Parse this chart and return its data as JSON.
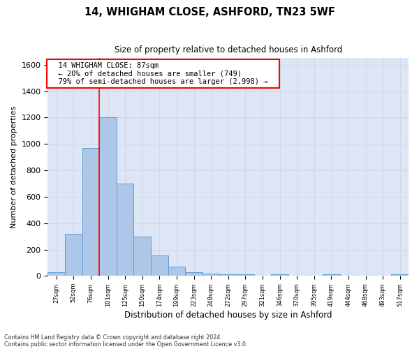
{
  "title": "14, WHIGHAM CLOSE, ASHFORD, TN23 5WF",
  "subtitle": "Size of property relative to detached houses in Ashford",
  "xlabel": "Distribution of detached houses by size in Ashford",
  "ylabel": "Number of detached properties",
  "footer_line1": "Contains HM Land Registry data © Crown copyright and database right 2024.",
  "footer_line2": "Contains public sector information licensed under the Open Government Licence v3.0.",
  "annotation_line1": "14 WHIGHAM CLOSE: 87sqm",
  "annotation_line2": "← 20% of detached houses are smaller (749)",
  "annotation_line3": "79% of semi-detached houses are larger (2,998) →",
  "bar_categories": [
    "27sqm",
    "52sqm",
    "76sqm",
    "101sqm",
    "125sqm",
    "150sqm",
    "174sqm",
    "199sqm",
    "223sqm",
    "248sqm",
    "272sqm",
    "297sqm",
    "321sqm",
    "346sqm",
    "370sqm",
    "395sqm",
    "419sqm",
    "444sqm",
    "468sqm",
    "493sqm",
    "517sqm"
  ],
  "bar_values": [
    30,
    320,
    970,
    1200,
    700,
    300,
    155,
    70,
    30,
    20,
    15,
    15,
    0,
    10,
    0,
    0,
    10,
    0,
    0,
    0,
    10
  ],
  "bar_color": "#aec6e8",
  "bar_edge_color": "#5a9fd4",
  "grid_color": "#d0d8e8",
  "background_color": "#dce6f5",
  "red_line_x": 2.5,
  "ylim": [
    0,
    1650
  ],
  "yticks": [
    0,
    200,
    400,
    600,
    800,
    1000,
    1200,
    1400,
    1600
  ]
}
